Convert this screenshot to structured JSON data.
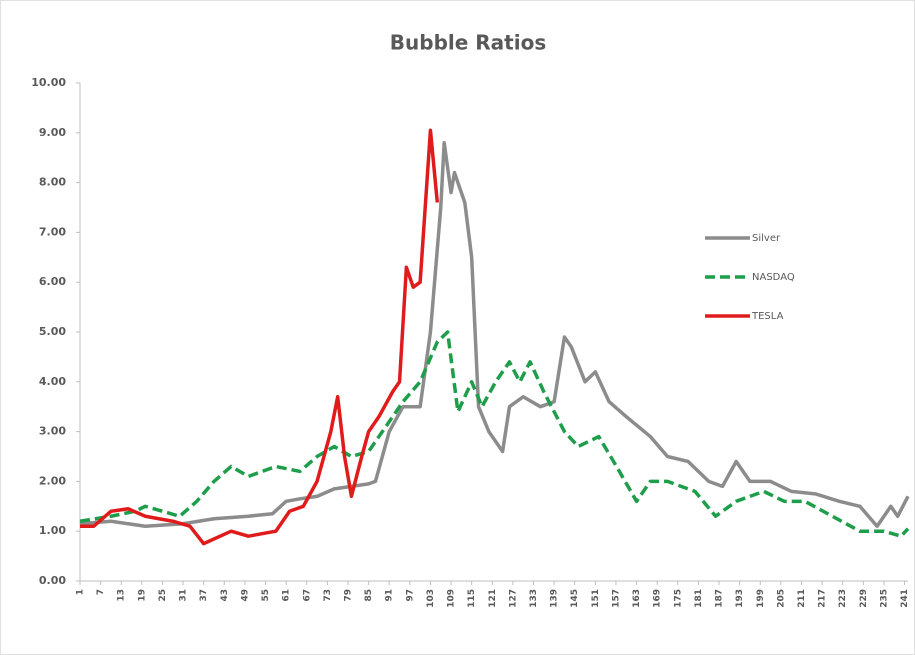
{
  "chart_data": {
    "type": "line",
    "title": "Bubble Ratios",
    "xlim": [
      1,
      242
    ],
    "xticks": [
      1,
      7,
      13,
      19,
      25,
      31,
      37,
      43,
      49,
      55,
      61,
      67,
      73,
      79,
      85,
      91,
      97,
      103,
      109,
      115,
      121,
      127,
      133,
      139,
      145,
      151,
      157,
      163,
      169,
      175,
      181,
      187,
      193,
      199,
      205,
      211,
      217,
      223,
      229,
      235,
      241
    ],
    "ylim": [
      0,
      10
    ],
    "yticks": [
      {
        "value": 0,
        "label": "0.00"
      },
      {
        "value": 1,
        "label": "1.00"
      },
      {
        "value": 2,
        "label": "2.00"
      },
      {
        "value": 3,
        "label": "3.00"
      },
      {
        "value": 4,
        "label": "4.00"
      },
      {
        "value": 5,
        "label": "5.00"
      },
      {
        "value": 6,
        "label": "6.00"
      },
      {
        "value": 7,
        "label": "7.00"
      },
      {
        "value": 8,
        "label": "8.00"
      },
      {
        "value": 9,
        "label": "9.00"
      },
      {
        "value": 10,
        "label": "10.00"
      }
    ],
    "legend": "right",
    "series": [
      {
        "name": "Silver",
        "color": "#8c8c8c",
        "dash": false,
        "x": [
          1,
          10,
          20,
          31,
          40,
          50,
          57,
          61,
          65,
          70,
          75,
          80,
          85,
          87,
          91,
          95,
          100,
          103,
          106,
          107,
          109,
          110,
          113,
          115,
          117,
          120,
          124,
          126,
          130,
          135,
          139,
          142,
          144,
          148,
          151,
          155,
          160,
          167,
          172,
          178,
          184,
          188,
          192,
          196,
          202,
          208,
          215,
          222,
          228,
          233,
          237,
          239,
          242
        ],
        "values": [
          1.15,
          1.2,
          1.1,
          1.15,
          1.25,
          1.3,
          1.35,
          1.6,
          1.65,
          1.7,
          1.85,
          1.9,
          1.95,
          2.0,
          3.0,
          3.5,
          3.5,
          5.0,
          7.5,
          8.8,
          7.8,
          8.2,
          7.6,
          6.5,
          3.5,
          3.0,
          2.6,
          3.5,
          3.7,
          3.5,
          3.6,
          4.9,
          4.7,
          4.0,
          4.2,
          3.6,
          3.3,
          2.9,
          2.5,
          2.4,
          2.0,
          1.9,
          2.4,
          2.0,
          2.0,
          1.8,
          1.75,
          1.6,
          1.5,
          1.1,
          1.5,
          1.3,
          1.7
        ]
      },
      {
        "name": "NASDAQ",
        "color": "#1e9e4a",
        "dash": true,
        "x": [
          1,
          10,
          17,
          20,
          25,
          30,
          35,
          40,
          45,
          50,
          58,
          65,
          70,
          75,
          80,
          85,
          90,
          95,
          100,
          105,
          108,
          111,
          115,
          118,
          122,
          126,
          129,
          132,
          136,
          142,
          146,
          152,
          158,
          163,
          167,
          172,
          180,
          186,
          192,
          200,
          206,
          212,
          220,
          228,
          235,
          240,
          242
        ],
        "values": [
          1.2,
          1.3,
          1.4,
          1.5,
          1.4,
          1.3,
          1.6,
          2.0,
          2.3,
          2.1,
          2.3,
          2.2,
          2.5,
          2.7,
          2.5,
          2.6,
          3.1,
          3.6,
          4.0,
          4.8,
          5.0,
          3.4,
          4.0,
          3.5,
          4.0,
          4.4,
          4.0,
          4.4,
          3.8,
          3.0,
          2.7,
          2.9,
          2.2,
          1.6,
          2.0,
          2.0,
          1.8,
          1.3,
          1.6,
          1.8,
          1.6,
          1.6,
          1.3,
          1.0,
          1.0,
          0.9,
          1.05
        ]
      },
      {
        "name": "TESLA",
        "color": "#e01b1b",
        "dash": false,
        "x": [
          1,
          5,
          10,
          15,
          20,
          28,
          33,
          37,
          45,
          50,
          58,
          62,
          66,
          70,
          74,
          76,
          78,
          80,
          83,
          85,
          88,
          92,
          94,
          96,
          98,
          100,
          103,
          105
        ],
        "values": [
          1.1,
          1.1,
          1.4,
          1.45,
          1.3,
          1.2,
          1.1,
          0.75,
          1.0,
          0.9,
          1.0,
          1.4,
          1.5,
          2.0,
          3.0,
          3.7,
          2.5,
          1.7,
          2.5,
          3.0,
          3.3,
          3.8,
          4.0,
          6.3,
          5.9,
          6.0,
          9.05,
          7.6
        ]
      }
    ]
  }
}
